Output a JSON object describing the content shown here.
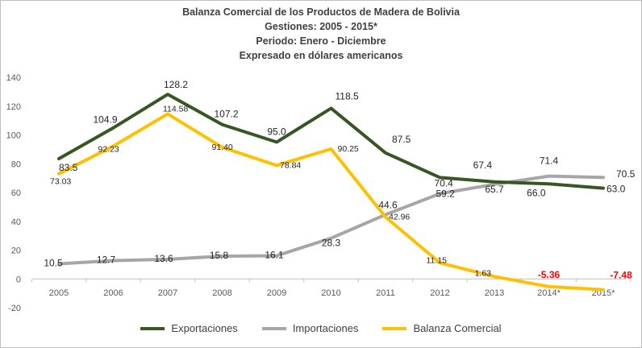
{
  "titles": [
    "Balanza Comercial de los Productos de Madera de Bolivia",
    "Gestiones: 2005 - 2015*",
    "Periodo: Enero - Diciembre",
    "Expresado en dólares americanos"
  ],
  "chart_data": {
    "type": "line",
    "title": "Balanza Comercial de los Productos de Madera de Bolivia",
    "categories": [
      "2005",
      "2006",
      "2007",
      "2008",
      "2009",
      "2010",
      "2011",
      "2012",
      "2013",
      "2014*",
      "2015*"
    ],
    "ylim": [
      -20,
      140
    ],
    "yticks": [
      "140",
      "120",
      "100",
      "80",
      "60",
      "40",
      "20",
      "0",
      "-20"
    ],
    "ytick_values": [
      140,
      120,
      100,
      80,
      60,
      40,
      20,
      0,
      -20
    ],
    "grid": false,
    "legend_position": "bottom",
    "series": [
      {
        "name": "Exportaciones",
        "color": "#375623",
        "values": [
          83.5,
          104.9,
          128.2,
          107.2,
          95.0,
          118.5,
          87.5,
          70.4,
          67.4,
          66.0,
          63.0
        ],
        "labels": [
          "83.5",
          "104.9",
          "128.2",
          "107.2",
          "95.0",
          "118.5",
          "87.5",
          "70.4",
          "67.4",
          "66.0",
          "63.0"
        ]
      },
      {
        "name": "Importaciones",
        "color": "#a6a6a6",
        "values": [
          10.5,
          12.7,
          13.6,
          15.8,
          16.1,
          28.3,
          44.6,
          59.2,
          65.7,
          71.4,
          70.5
        ],
        "labels": [
          "10.5",
          "12.7",
          "13.6",
          "15.8",
          "16.1",
          "28.3",
          "44.6",
          "59.2",
          "65.7",
          "71.4",
          "70.5"
        ]
      },
      {
        "name": "Balanza Comercial",
        "color": "#ffc000",
        "values": [
          73.03,
          92.23,
          114.58,
          91.4,
          78.84,
          90.25,
          42.96,
          11.15,
          1.63,
          -5.36,
          -7.48
        ],
        "labels": [
          "73.03",
          "92.23",
          "114.58",
          "91.40",
          "78.84",
          "90.25",
          "42.96",
          "11.15",
          "1.63",
          "-5.36",
          "-7.48"
        ],
        "negative_label_color": "#ff0000"
      }
    ]
  }
}
